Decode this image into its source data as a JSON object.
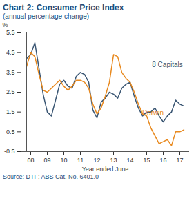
{
  "chart_data": {
    "type": "line",
    "title": "Chart 2: Consumer Price Index",
    "subtitle": "(annual percentage change)",
    "y_label": "%",
    "x_label": "Year ended June",
    "source": "Source: DTF: ABS Cat. No. 6401.0",
    "categories": [
      null,
      "08",
      null,
      null,
      null,
      "09",
      null,
      null,
      null,
      "10",
      null,
      null,
      null,
      "11",
      null,
      null,
      null,
      "12",
      null,
      null,
      null,
      "13",
      null,
      null,
      null,
      "14",
      null,
      null,
      null,
      "15",
      null,
      null,
      null,
      "16",
      null,
      null,
      null,
      "17",
      null
    ],
    "series": [
      {
        "name": "8 Capitals",
        "color": "#3a5673",
        "values": [
          4.2,
          4.4,
          5.0,
          3.7,
          2.4,
          1.5,
          1.3,
          2.1,
          2.9,
          3.1,
          2.8,
          2.7,
          3.3,
          3.5,
          3.4,
          3.0,
          1.6,
          1.2,
          2.0,
          2.2,
          2.5,
          2.4,
          2.2,
          2.7,
          2.9,
          3.0,
          2.3,
          1.7,
          1.3,
          1.5,
          1.5,
          1.7,
          1.3,
          1.0,
          1.3,
          1.5,
          2.1,
          1.9,
          1.8
        ]
      },
      {
        "name": "Darwin",
        "color": "#e8891e",
        "values": [
          3.8,
          4.5,
          4.3,
          3.4,
          2.6,
          2.5,
          2.7,
          2.9,
          3.1,
          2.8,
          2.6,
          2.8,
          3.1,
          3.1,
          3.0,
          2.7,
          1.9,
          1.4,
          1.7,
          2.3,
          3.0,
          4.4,
          4.3,
          3.5,
          3.2,
          3.0,
          2.5,
          1.9,
          1.4,
          1.3,
          0.7,
          0.3,
          -0.1,
          0.0,
          0.1,
          -0.2,
          0.5,
          0.5,
          0.6
        ]
      }
    ],
    "ylim": [
      -0.5,
      5.5
    ],
    "yticks": [
      -0.5,
      0.5,
      1.5,
      2.5,
      3.5,
      4.5,
      5.5
    ],
    "grid": false
  }
}
